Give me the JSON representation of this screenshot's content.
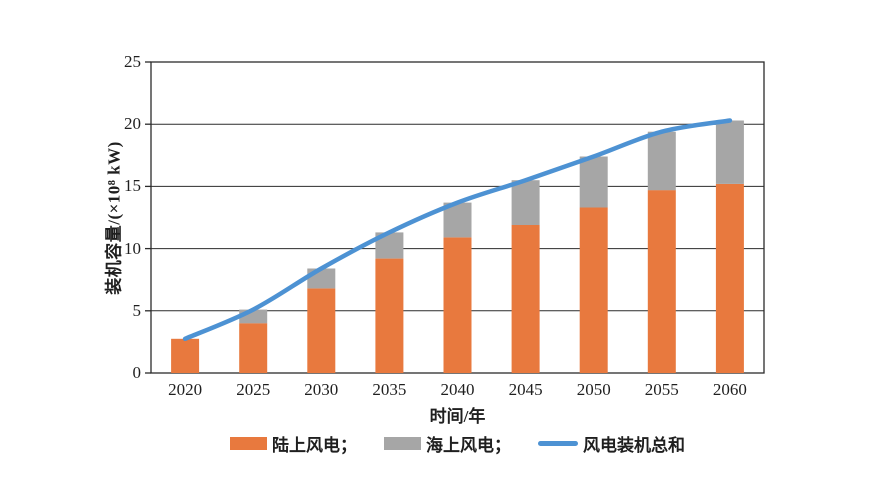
{
  "chart_data": {
    "type": "bar",
    "stacked": true,
    "title": "",
    "xlabel": "时间/年",
    "ylabel": "装机容量/(×10⁸ kW)",
    "categories": [
      "2020",
      "2025",
      "2030",
      "2035",
      "2040",
      "2045",
      "2050",
      "2055",
      "2060"
    ],
    "series": [
      {
        "name": "陆上风电",
        "type": "bar",
        "color": "#E8793E",
        "values": [
          2.75,
          4.0,
          6.8,
          9.2,
          10.9,
          11.9,
          13.3,
          14.7,
          15.2
        ]
      },
      {
        "name": "海上风电",
        "type": "bar",
        "color": "#A6A6A6",
        "values": [
          0,
          1.1,
          1.6,
          2.1,
          2.8,
          3.6,
          4.1,
          4.7,
          5.1
        ]
      },
      {
        "name": "风电装机总和",
        "type": "line",
        "color": "#4D92D3",
        "values": [
          2.75,
          5.1,
          8.4,
          11.3,
          13.7,
          15.5,
          17.4,
          19.4,
          20.3
        ]
      }
    ],
    "ylim": [
      0,
      25
    ],
    "yticks": [
      0,
      5,
      10,
      15,
      20,
      25
    ],
    "grid": true,
    "axis_color": "#2b2b2b",
    "legend_position": "bottom"
  },
  "legend": {
    "items": [
      {
        "label": "陆上风电；"
      },
      {
        "label": "海上风电；"
      },
      {
        "label": "风电装机总和"
      }
    ]
  }
}
